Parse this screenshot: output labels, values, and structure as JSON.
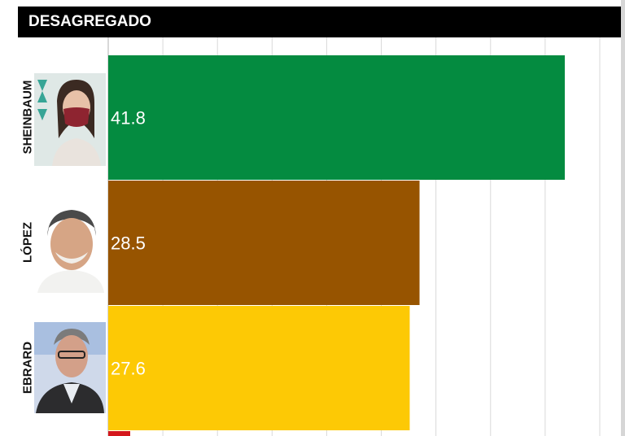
{
  "header": {
    "title": "DESAGREGADO"
  },
  "colors": {
    "sheinbaum": "#048b40",
    "lopez": "#975400",
    "ebrard": "#fdc905",
    "fourth": "#d4171b",
    "grid": "#d9d9d9",
    "value_text": "#ffffff"
  },
  "chart_data": {
    "type": "bar",
    "orientation": "horizontal",
    "title": "DESAGREGADO",
    "categories": [
      "SHEINBAUM",
      "LÓPEZ",
      "EBRARD"
    ],
    "values": [
      41.8,
      28.5,
      27.6
    ],
    "value_labels": [
      "41.8",
      "28.5",
      "27.6"
    ],
    "xlim": [
      0,
      45
    ],
    "grid": true,
    "partially_visible_fourth_bar": true
  }
}
